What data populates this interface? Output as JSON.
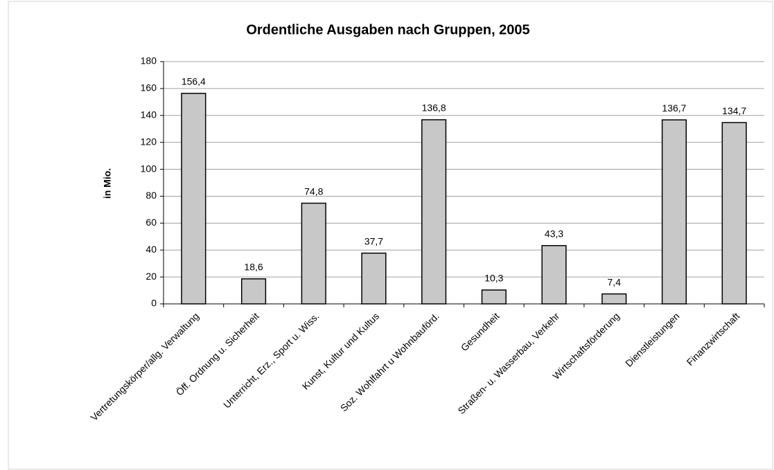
{
  "chart_data": {
    "type": "bar",
    "title": "Ordentliche Ausgaben nach Gruppen, 2005",
    "y_label": "in Mio.",
    "categories": [
      "Vertretungskörper/allg. Verwaltung",
      "Öff. Ordnung u. Sicherheit",
      "Unterricht, Erz., Sport u. Wiss.",
      "Kunst, Kultur und Kultus",
      "Soz. Wohlfahrt u Wohnbauförd.",
      "Gesundheit",
      "Straßen- u. Wasserbau, Verkehr",
      "Wirtschaftsförderung",
      "Dienstleistungen",
      "Finanzwirtschaft"
    ],
    "values": [
      156.4,
      18.6,
      74.8,
      37.7,
      136.8,
      10.3,
      43.3,
      7.4,
      136.7,
      134.7
    ],
    "value_labels": [
      "156,4",
      "18,6",
      "74,8",
      "37,7",
      "136,8",
      "10,3",
      "43,3",
      "7,4",
      "136,7",
      "134,7"
    ],
    "color": "#c8c8c8",
    "ylim": [
      0,
      180
    ],
    "yticks": [
      0,
      20,
      40,
      60,
      80,
      100,
      120,
      140,
      160,
      180
    ],
    "grid": true
  }
}
